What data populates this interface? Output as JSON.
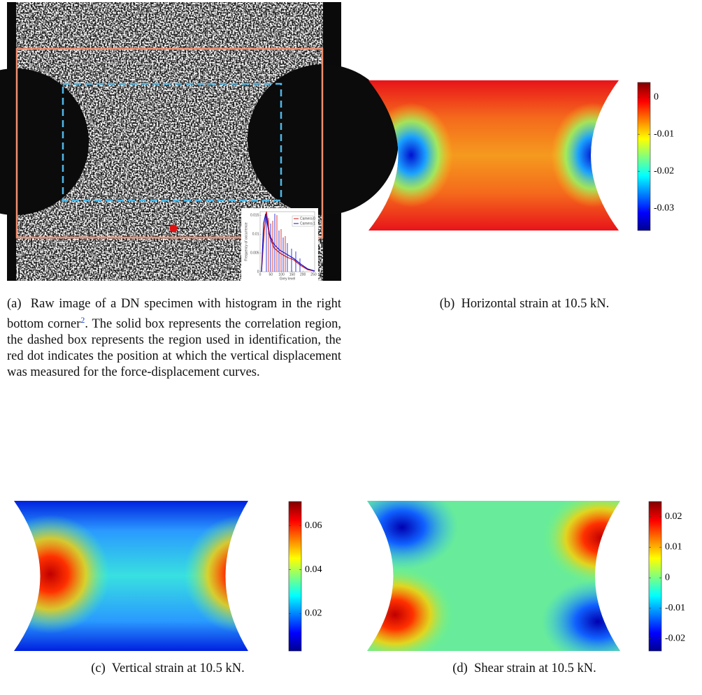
{
  "panels": [
    {
      "label": "(a)",
      "caption": "Raw image of a DN specimen with histogram in the right bottom corner",
      "footnote": "2",
      "caption_rest": ". The solid box represents the correlation region, the dashed box represents the region used in identification, the red dot indicates the position at which the vertical displacement was measured for the force-displacement curves.",
      "inset": {
        "legend": [
          "Camera 0",
          "Camera 1"
        ],
        "xlabel": "Grey level",
        "ylabel": "Frequency of occurrence",
        "xlim": [
          0,
          255
        ],
        "ylim": [
          0,
          0.016
        ],
        "xticks": [
          0,
          50,
          100,
          150,
          200,
          250
        ],
        "yticks": [
          0,
          0.005,
          0.01,
          0.015
        ]
      }
    },
    {
      "label": "(b)",
      "caption": "Horizontal strain at 10.5 kN.",
      "colorbar": {
        "lim": [
          -0.036,
          0.004
        ],
        "ticks": [
          0,
          -0.01,
          -0.02,
          -0.03
        ]
      }
    },
    {
      "label": "(c)",
      "caption": "Vertical strain at 10.5 kN.",
      "colorbar": {
        "lim": [
          0.003,
          0.071
        ],
        "ticks": [
          0.06,
          0.04,
          0.02
        ]
      }
    },
    {
      "label": "(d)",
      "caption": "Shear strain at 10.5 kN.",
      "colorbar": {
        "lim": [
          -0.024,
          0.025
        ],
        "ticks": [
          0.02,
          0.01,
          0,
          -0.01,
          -0.02
        ]
      }
    }
  ]
}
